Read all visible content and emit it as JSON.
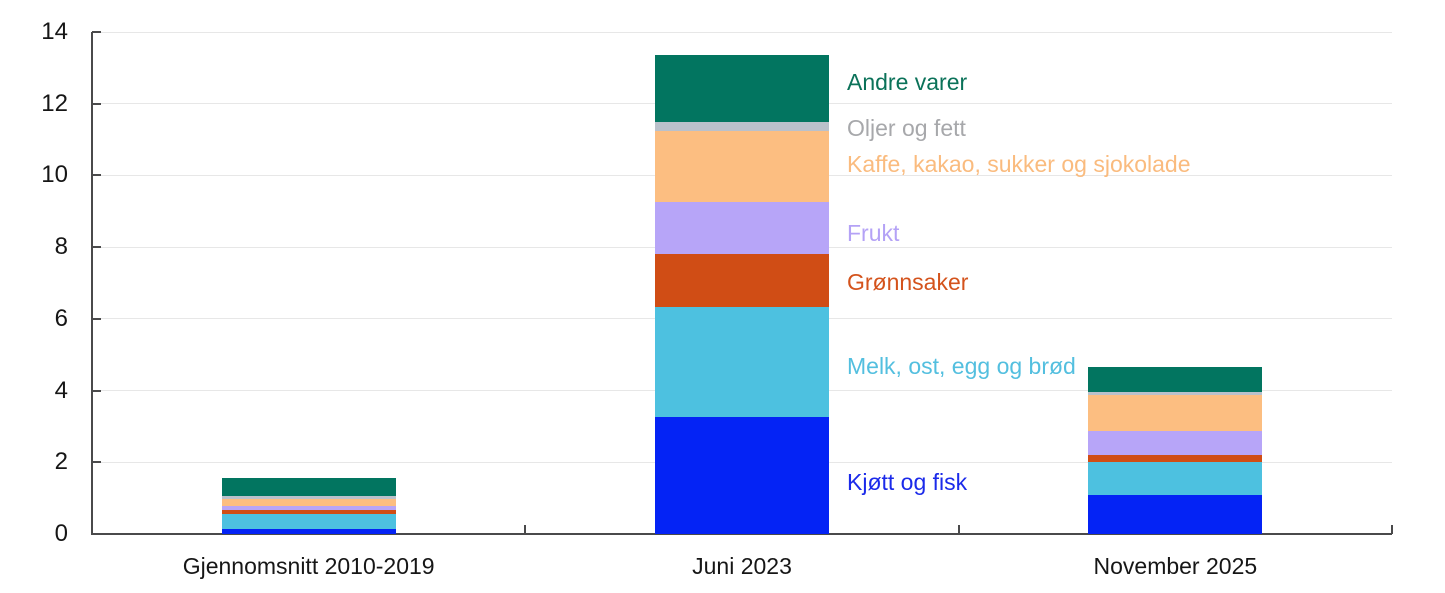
{
  "chart_data": {
    "type": "bar",
    "stacked": true,
    "title": "",
    "xlabel": "",
    "ylabel": "",
    "categories": [
      "Gjennomsnitt 2010-2019",
      "Juni 2023",
      "November 2025"
    ],
    "series": [
      {
        "name": "Kjøtt og fisk",
        "color": "#0423f5",
        "label_color": "#1b2aea",
        "values": [
          0.15,
          3.27,
          1.1
        ]
      },
      {
        "name": "Melk, ost, egg og brød",
        "color": "#4dc1e0",
        "label_color": "#53bfdf",
        "values": [
          0.4,
          3.05,
          0.9
        ]
      },
      {
        "name": "Grønnsaker",
        "color": "#d04d15",
        "label_color": "#d4531c",
        "values": [
          0.12,
          1.48,
          0.2
        ]
      },
      {
        "name": "Frukt",
        "color": "#b7a5f8",
        "label_color": "#b4a2f6",
        "values": [
          0.12,
          1.45,
          0.67
        ]
      },
      {
        "name": "Kaffe, kakao, sukker og sjokolade",
        "color": "#fcbe81",
        "label_color": "#fabb7e",
        "values": [
          0.19,
          2.0,
          1.0
        ]
      },
      {
        "name": "Oljer og fett",
        "color": "#bac1cb",
        "label_color": "#a7a8ab",
        "values": [
          0.08,
          0.25,
          0.08
        ]
      },
      {
        "name": "Andre varer",
        "color": "#027560",
        "label_color": "#0b7259",
        "values": [
          0.51,
          1.87,
          0.72
        ]
      }
    ],
    "totals": [
      1.57,
      13.37,
      4.67
    ],
    "ylim": [
      0,
      14
    ],
    "yticks": [
      0,
      2,
      4,
      6,
      8,
      10,
      12,
      14
    ],
    "grid": true,
    "legend_position": "labels-right-of-middle-bar",
    "axis_color": "#4a4a4b",
    "grid_color": "#e7e7e7",
    "text_color": "#161616"
  }
}
